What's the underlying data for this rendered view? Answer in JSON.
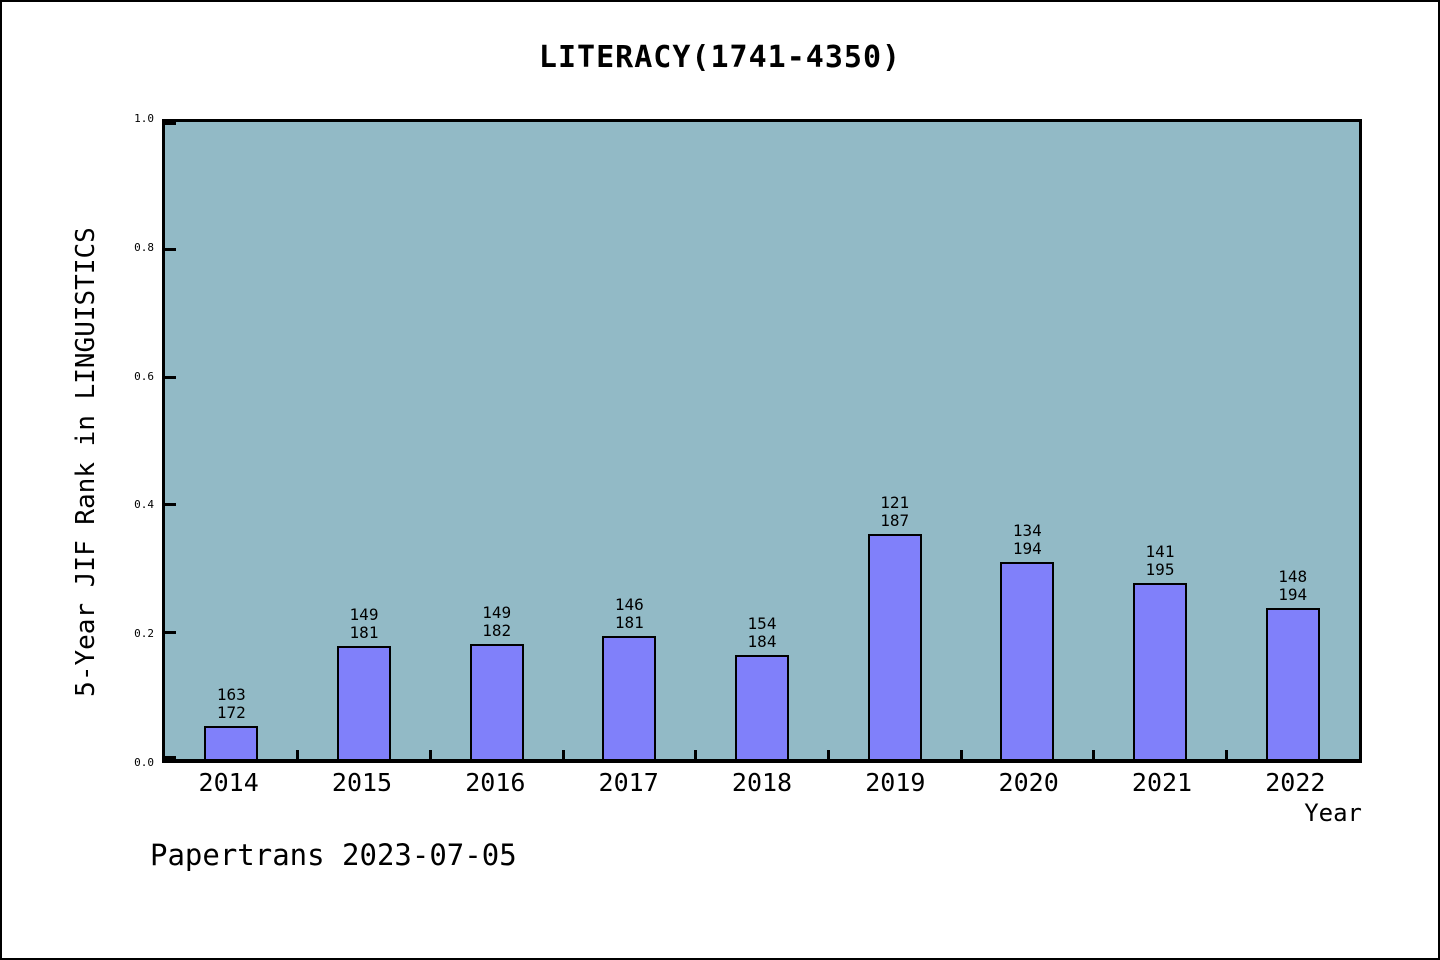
{
  "chart_data": {
    "type": "bar",
    "title": "LITERACY(1741-4350)",
    "xlabel": "Year",
    "ylabel": "5-Year JIF Rank in LINGUISTICS",
    "ylim": [
      0.0,
      1.0
    ],
    "yticks": [
      0.0,
      0.2,
      0.4,
      0.6,
      0.8,
      1.0
    ],
    "ytick_labels": [
      "0.0",
      "0.2",
      "0.4",
      "0.6",
      "0.8",
      "1.0"
    ],
    "grid": false,
    "legend": null,
    "categories": [
      "2014",
      "2015",
      "2016",
      "2017",
      "2018",
      "2019",
      "2020",
      "2021",
      "2022"
    ],
    "values": [
      0.0523,
      0.1768,
      0.1813,
      0.1934,
      0.163,
      0.3529,
      0.3093,
      0.2769,
      0.2371
    ],
    "bar_annotations": [
      {
        "rank": "163",
        "total": "172"
      },
      {
        "rank": "149",
        "total": "181"
      },
      {
        "rank": "149",
        "total": "182"
      },
      {
        "rank": "146",
        "total": "181"
      },
      {
        "rank": "154",
        "total": "184"
      },
      {
        "rank": "121",
        "total": "187"
      },
      {
        "rank": "134",
        "total": "194"
      },
      {
        "rank": "141",
        "total": "195"
      },
      {
        "rank": "148",
        "total": "194"
      }
    ],
    "colors": {
      "plot_background": "#92BAC6",
      "bar_fill": "#8080FA",
      "bar_edge": "#000000",
      "axis": "#000000",
      "text": "#000000"
    }
  },
  "footer": {
    "text": "Papertrans 2023-07-05"
  }
}
